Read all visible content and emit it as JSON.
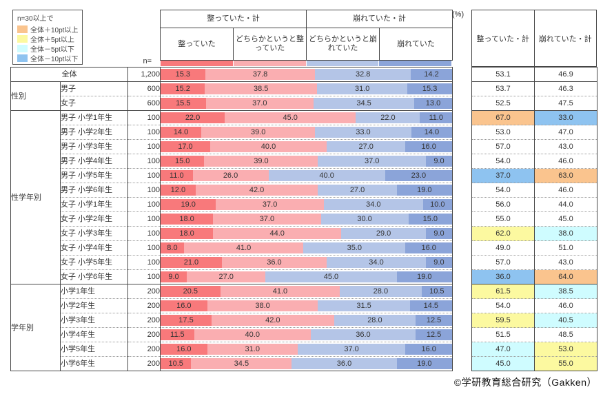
{
  "legend": {
    "title": "n=30以上で",
    "items": [
      {
        "label": "全体＋10pt以上",
        "key": "o"
      },
      {
        "label": "全体＋5pt以上",
        "key": "y"
      },
      {
        "label": "全体－5pt以下",
        "key": "c"
      },
      {
        "label": "全体－10pt以下",
        "key": "b"
      }
    ]
  },
  "n_label": "n=",
  "percent_label": "(%)",
  "colors": {
    "segments": [
      "#F8797B",
      "#FAAEB1",
      "#B4C5E7",
      "#8BA4D9"
    ],
    "highlight": {
      "o": "#FAC48E",
      "y": "#FCF9A0",
      "c": "#CFFCFF",
      "b": "#8EC3F0"
    }
  },
  "header": {
    "totals": [
      "整っていた・計",
      "崩れていた・計"
    ],
    "subs": [
      "整っていた",
      "どちらかというと整っていた",
      "どちらかというと崩れていた",
      "崩れていた"
    ],
    "summary": [
      "整っていた・計",
      "崩れていた・計"
    ]
  },
  "footer": "©学研教育総合研究（Gakken）",
  "chart_data": {
    "type": "bar",
    "stacked": true,
    "orientation": "horizontal",
    "unit": "%",
    "xlim": [
      0,
      100
    ],
    "series_labels": [
      "整っていた",
      "どちらかというと整っていた",
      "どちらかというと崩れていた",
      "崩れていた"
    ],
    "summary_labels": [
      "整っていた・計",
      "崩れていた・計"
    ],
    "groups": [
      {
        "name": "",
        "span": 1
      },
      {
        "name": "性別",
        "span": 2
      },
      {
        "name": "性学年別",
        "span": 12
      },
      {
        "name": "学年別",
        "span": 6
      }
    ],
    "rows": [
      {
        "label": "全体",
        "n": "1,200",
        "values": [
          15.3,
          37.8,
          32.8,
          14.2
        ],
        "sums": [
          53.1,
          46.9
        ],
        "hl": [
          null,
          null
        ]
      },
      {
        "label": "男子",
        "n": "600",
        "values": [
          15.2,
          38.5,
          31.0,
          15.3
        ],
        "sums": [
          53.7,
          46.3
        ],
        "hl": [
          null,
          null
        ]
      },
      {
        "label": "女子",
        "n": "600",
        "values": [
          15.5,
          37.0,
          34.5,
          13.0
        ],
        "sums": [
          52.5,
          47.5
        ],
        "hl": [
          null,
          null
        ]
      },
      {
        "label": "男子  小学1年生",
        "n": "100",
        "values": [
          22.0,
          45.0,
          22.0,
          11.0
        ],
        "sums": [
          67.0,
          33.0
        ],
        "hl": [
          "o",
          "b"
        ]
      },
      {
        "label": "男子  小学2年生",
        "n": "100",
        "values": [
          14.0,
          39.0,
          33.0,
          14.0
        ],
        "sums": [
          53.0,
          47.0
        ],
        "hl": [
          null,
          null
        ]
      },
      {
        "label": "男子  小学3年生",
        "n": "100",
        "values": [
          17.0,
          40.0,
          27.0,
          16.0
        ],
        "sums": [
          57.0,
          43.0
        ],
        "hl": [
          null,
          null
        ]
      },
      {
        "label": "男子  小学4年生",
        "n": "100",
        "values": [
          15.0,
          39.0,
          37.0,
          9.0
        ],
        "sums": [
          54.0,
          46.0
        ],
        "hl": [
          null,
          null
        ]
      },
      {
        "label": "男子  小学5年生",
        "n": "100",
        "values": [
          11.0,
          26.0,
          40.0,
          23.0
        ],
        "sums": [
          37.0,
          63.0
        ],
        "hl": [
          "b",
          "o"
        ]
      },
      {
        "label": "男子  小学6年生",
        "n": "100",
        "values": [
          12.0,
          42.0,
          27.0,
          19.0
        ],
        "sums": [
          54.0,
          46.0
        ],
        "hl": [
          null,
          null
        ]
      },
      {
        "label": "女子  小学1年生",
        "n": "100",
        "values": [
          19.0,
          37.0,
          34.0,
          10.0
        ],
        "sums": [
          56.0,
          44.0
        ],
        "hl": [
          null,
          null
        ]
      },
      {
        "label": "女子  小学2年生",
        "n": "100",
        "values": [
          18.0,
          37.0,
          30.0,
          15.0
        ],
        "sums": [
          55.0,
          45.0
        ],
        "hl": [
          null,
          null
        ]
      },
      {
        "label": "女子  小学3年生",
        "n": "100",
        "values": [
          18.0,
          44.0,
          29.0,
          9.0
        ],
        "sums": [
          62.0,
          38.0
        ],
        "hl": [
          "y",
          "c"
        ]
      },
      {
        "label": "女子  小学4年生",
        "n": "100",
        "values": [
          8.0,
          41.0,
          35.0,
          16.0
        ],
        "sums": [
          49.0,
          51.0
        ],
        "hl": [
          null,
          null
        ]
      },
      {
        "label": "女子  小学5年生",
        "n": "100",
        "values": [
          21.0,
          36.0,
          34.0,
          9.0
        ],
        "sums": [
          57.0,
          43.0
        ],
        "hl": [
          null,
          null
        ]
      },
      {
        "label": "女子  小学6年生",
        "n": "100",
        "values": [
          9.0,
          27.0,
          45.0,
          19.0
        ],
        "sums": [
          36.0,
          64.0
        ],
        "hl": [
          "b",
          "o"
        ]
      },
      {
        "label": "小学1年生",
        "n": "200",
        "values": [
          20.5,
          41.0,
          28.0,
          10.5
        ],
        "sums": [
          61.5,
          38.5
        ],
        "hl": [
          "y",
          "c"
        ]
      },
      {
        "label": "小学2年生",
        "n": "200",
        "values": [
          16.0,
          38.0,
          31.5,
          14.5
        ],
        "sums": [
          54.0,
          46.0
        ],
        "hl": [
          null,
          null
        ]
      },
      {
        "label": "小学3年生",
        "n": "200",
        "values": [
          17.5,
          42.0,
          28.0,
          12.5
        ],
        "sums": [
          59.5,
          40.5
        ],
        "hl": [
          "y",
          "c"
        ]
      },
      {
        "label": "小学4年生",
        "n": "200",
        "values": [
          11.5,
          40.0,
          36.0,
          12.5
        ],
        "sums": [
          51.5,
          48.5
        ],
        "hl": [
          null,
          null
        ]
      },
      {
        "label": "小学5年生",
        "n": "200",
        "values": [
          16.0,
          31.0,
          37.0,
          16.0
        ],
        "sums": [
          47.0,
          53.0
        ],
        "hl": [
          "c",
          "y"
        ]
      },
      {
        "label": "小学6年生",
        "n": "200",
        "values": [
          10.5,
          34.5,
          36.0,
          19.0
        ],
        "sums": [
          45.0,
          55.0
        ],
        "hl": [
          "c",
          "y"
        ]
      }
    ]
  }
}
